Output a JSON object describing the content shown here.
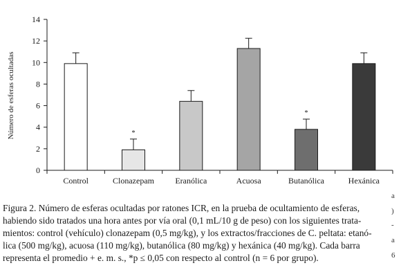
{
  "chart_data": {
    "type": "bar",
    "categories": [
      "Control",
      "Clonazepam",
      "Eranólica",
      "Acuosa",
      "Butanólica",
      "Hexánica"
    ],
    "values": [
      9.9,
      1.9,
      6.4,
      11.3,
      3.8,
      9.9
    ],
    "errors": [
      1.0,
      1.0,
      1.0,
      0.95,
      0.95,
      1.0
    ],
    "significant": [
      false,
      true,
      false,
      false,
      true,
      false
    ],
    "significance_marker": "*",
    "bar_colors": [
      "#ffffff",
      "#e6e6e6",
      "#c8c8c8",
      "#a5a5a5",
      "#6e6e6e",
      "#3a3a3a"
    ],
    "ylabel": "Número de esferas ocultadas",
    "ylim": [
      0,
      14
    ],
    "yticks": [
      0,
      2,
      4,
      6,
      8,
      10,
      12,
      14
    ],
    "ytick_labels": [
      "0",
      "2",
      "4",
      "6",
      "8",
      "10",
      "12",
      "14"
    ],
    "grid": false,
    "legend": "none"
  },
  "caption": {
    "lines": [
      "Figura  2. Número de esferas ocultadas por ratones ICR, en la prueba de ocultamiento de esferas,",
      "habiendo sido tratados una hora antes por vía oral (0,1 mL/10 g de peso) con los siguientes trata-",
      "mientos: control (vehículo) clonazepam (0,5 mg/kg), y los extractos/fracciones de C. peltata: etanó-",
      "lica (500 mg/kg), acuosa (110 mg/kg), butanólica (80 mg/kg) y hexánica (40 mg/kg). Cada barra",
      "representa el promedio + e. m. s., *p ≤ 0,05 con respecto al control (n = 6 por grupo)."
    ]
  },
  "edge_glyphs": [
    "a",
    ")",
    "-",
    "a",
    "6"
  ]
}
